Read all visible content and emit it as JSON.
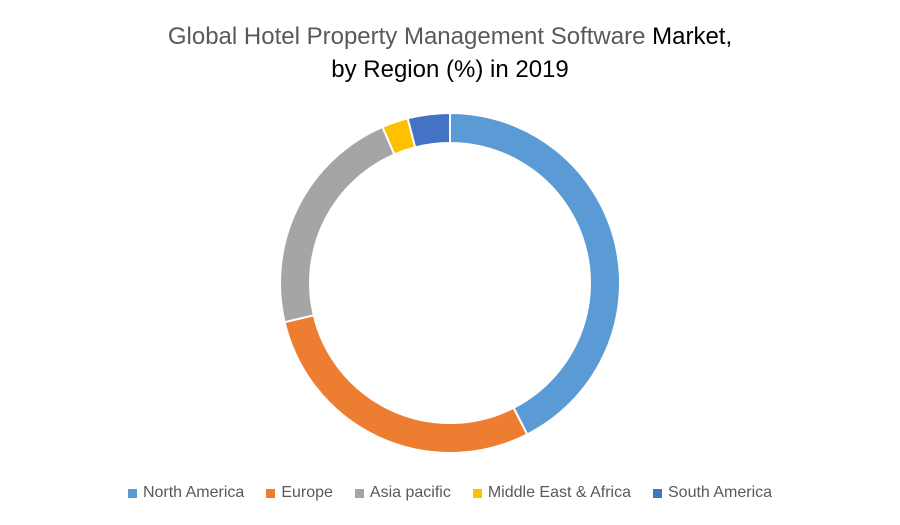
{
  "chart_data": {
    "type": "pie",
    "donut": true,
    "title_part1": "Global Hotel Property Management Software ",
    "title_part2": " Market,",
    "title_line2": "by Region (%) in 2019",
    "categories": [
      "North America",
      "Europe",
      "Asia pacific",
      "Middle East & Africa",
      "South America"
    ],
    "values": [
      42.5,
      28.8,
      22.2,
      2.5,
      4.0
    ],
    "colors": [
      "#5B9BD5",
      "#ED7D31",
      "#A5A5A5",
      "#FFC000",
      "#4472C4"
    ],
    "legend_position": "bottom"
  }
}
